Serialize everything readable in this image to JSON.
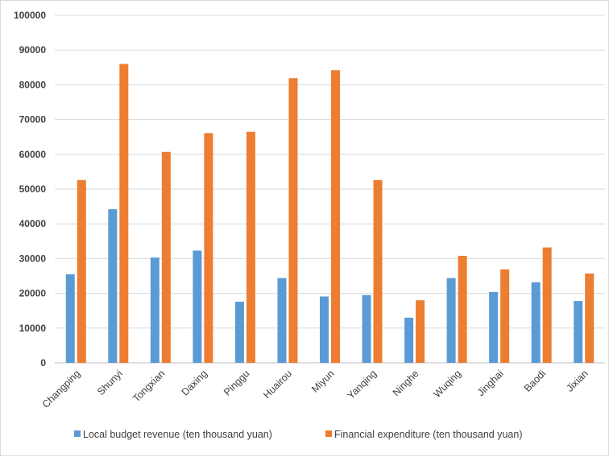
{
  "chart_data": {
    "type": "bar",
    "categories": [
      "Changping",
      "Shunyi",
      "Tongxian",
      "Daxing",
      "Pinggu",
      "Huairou",
      "Miyun",
      "Yanqing",
      "Ninghe",
      "Wuqing",
      "Jinghai",
      "Baodi",
      "Jixian"
    ],
    "series": [
      {
        "name": "Local budget revenue (ten thousand yuan)",
        "color": "#5b9bd5",
        "values": [
          25500,
          44200,
          30300,
          32300,
          17600,
          24400,
          19100,
          19500,
          13000,
          24400,
          20400,
          23200,
          17800
        ]
      },
      {
        "name": "Financial expenditure (ten thousand yuan)",
        "color": "#ed7d31",
        "values": [
          52600,
          86000,
          60700,
          66100,
          66500,
          81900,
          84200,
          52600,
          18000,
          30800,
          26900,
          33200,
          25700
        ]
      }
    ],
    "ylim": [
      0,
      100000
    ],
    "yticks": [
      "0",
      "10000",
      "20000",
      "30000",
      "40000",
      "50000",
      "60000",
      "70000",
      "80000",
      "90000",
      "100000"
    ],
    "grid": true,
    "legend": "bottom",
    "xlabel": "",
    "ylabel": "",
    "title": ""
  }
}
